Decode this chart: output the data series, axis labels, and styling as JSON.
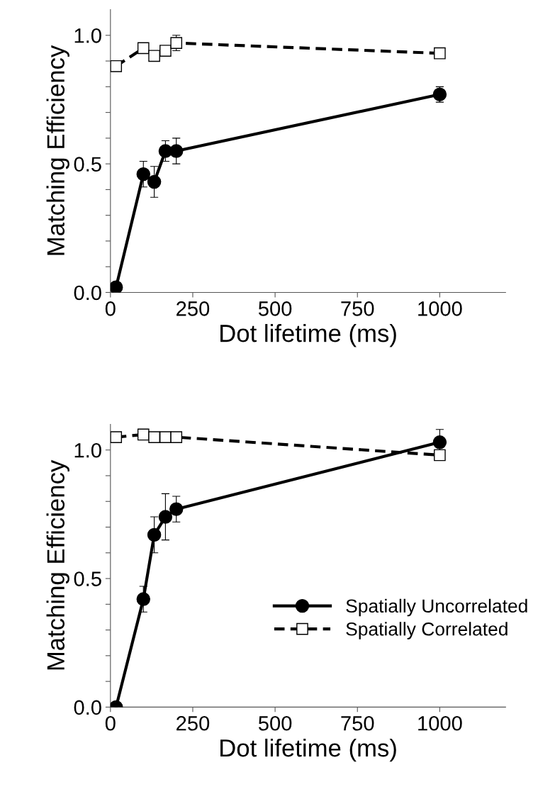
{
  "chart_data": [
    {
      "type": "line",
      "xlabel": "Dot lifetime (ms)",
      "ylabel": "Matching Efficiency",
      "xlim": [
        0,
        1200
      ],
      "xticks": [
        0,
        250,
        500,
        750,
        1000
      ],
      "ylim": [
        0,
        1.1
      ],
      "yticks": [
        {
          "value": 0,
          "label": "0.0"
        },
        {
          "value": 0.1,
          "label": null
        },
        {
          "value": 0.2,
          "label": null
        },
        {
          "value": 0.3,
          "label": null
        },
        {
          "value": 0.4,
          "label": null
        },
        {
          "value": 0.5,
          "label": "0.5"
        },
        {
          "value": 0.6,
          "label": null
        },
        {
          "value": 0.7,
          "label": null
        },
        {
          "value": 0.8,
          "label": null
        },
        {
          "value": 0.9,
          "label": null
        },
        {
          "value": 1.0,
          "label": "1.0"
        }
      ],
      "grid": false,
      "series": [
        {
          "color": "#000000",
          "marker": "circle",
          "line_style": "solid",
          "x": [
            17,
            100,
            133,
            167,
            200,
            1000
          ],
          "values": [
            0.02,
            0.46,
            0.43,
            0.55,
            0.55,
            0.77
          ],
          "errors": [
            null,
            0.05,
            0.06,
            0.04,
            0.05,
            0.03
          ]
        },
        {
          "color": "#000000",
          "marker": "square",
          "line_style": "dashed",
          "x": [
            17,
            100,
            133,
            167,
            200,
            1000
          ],
          "values": [
            0.88,
            0.95,
            0.92,
            0.94,
            0.97,
            0.93
          ],
          "errors": [
            null,
            null,
            null,
            null,
            0.03,
            null
          ]
        }
      ]
    },
    {
      "type": "line",
      "xlabel": "Dot lifetime (ms)",
      "ylabel": "Matching Efficiency",
      "xlim": [
        0,
        1200
      ],
      "xticks": [
        0,
        250,
        500,
        750,
        1000
      ],
      "ylim": [
        0,
        1.1
      ],
      "yticks": [
        {
          "value": 0,
          "label": "0.0"
        },
        {
          "value": 0.1,
          "label": null
        },
        {
          "value": 0.2,
          "label": null
        },
        {
          "value": 0.3,
          "label": null
        },
        {
          "value": 0.4,
          "label": null
        },
        {
          "value": 0.5,
          "label": "0.5"
        },
        {
          "value": 0.6,
          "label": null
        },
        {
          "value": 0.7,
          "label": null
        },
        {
          "value": 0.8,
          "label": null
        },
        {
          "value": 0.9,
          "label": null
        },
        {
          "value": 1.0,
          "label": "1.0"
        }
      ],
      "grid": false,
      "legend": "lower right",
      "series": [
        {
          "name": "Spatially Uncorrelated",
          "color": "#000000",
          "marker": "circle",
          "line_style": "solid",
          "x": [
            17,
            100,
            133,
            167,
            200,
            1000
          ],
          "values": [
            0.0,
            0.42,
            0.67,
            0.74,
            0.77,
            1.03
          ],
          "errors": [
            null,
            0.05,
            0.07,
            0.09,
            0.05,
            0.05
          ]
        },
        {
          "name": "Spatially Correlated",
          "color": "#000000",
          "marker": "square",
          "line_style": "dashed",
          "x": [
            17,
            100,
            133,
            167,
            200,
            1000
          ],
          "values": [
            1.05,
            1.06,
            1.05,
            1.05,
            1.05,
            0.98
          ],
          "errors": [
            null,
            null,
            null,
            null,
            null,
            null
          ]
        }
      ]
    }
  ]
}
